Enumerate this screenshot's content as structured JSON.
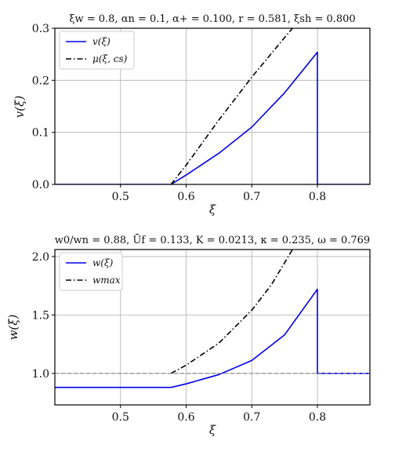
{
  "chart_data": [
    {
      "type": "line",
      "title": "ξw = 0.8, αn = 0.1, α+ = 0.100, r = 0.581, ξsh = 0.800",
      "xlabel": "ξ",
      "ylabel": "v(ξ)",
      "xlim": [
        0.4,
        0.88
      ],
      "ylim": [
        0.0,
        0.3
      ],
      "xticks": [
        "0.5",
        "0.6",
        "0.7",
        "0.8"
      ],
      "xtick_values": [
        0.5,
        0.6,
        0.7,
        0.8
      ],
      "yticks": [
        "0.0",
        "0.1",
        "0.2",
        "0.3"
      ],
      "ytick_values": [
        0.0,
        0.1,
        0.2,
        0.3
      ],
      "grid": true,
      "legend": "top-left",
      "series": [
        {
          "name": "v(ξ)",
          "color": "#0000ee",
          "style": "solid",
          "x": [
            0.4,
            0.577,
            0.6,
            0.65,
            0.7,
            0.75,
            0.8,
            0.8,
            0.88
          ],
          "y": [
            0.0,
            0.0,
            0.018,
            0.06,
            0.11,
            0.176,
            0.254,
            0.0,
            0.0
          ]
        },
        {
          "name": "μ(ξ, cs)",
          "color": "#000000",
          "style": "dashdot",
          "x": [
            0.577,
            0.6,
            0.65,
            0.7,
            0.75,
            0.762
          ],
          "y": [
            0.0,
            0.037,
            0.124,
            0.206,
            0.282,
            0.3
          ]
        }
      ]
    },
    {
      "type": "line",
      "title": "w0/wn = 0.88, Ūf = 0.133, K = 0.0213, κ = 0.235, ω = 0.769",
      "xlabel": "ξ",
      "ylabel": "w(ξ)",
      "xlim": [
        0.4,
        0.88
      ],
      "ylim": [
        0.73,
        2.06
      ],
      "xticks": [
        "0.5",
        "0.6",
        "0.7",
        "0.8"
      ],
      "xtick_values": [
        0.5,
        0.6,
        0.7,
        0.8
      ],
      "yticks": [
        "1.0",
        "1.5",
        "2.0"
      ],
      "ytick_values": [
        1.0,
        1.5,
        2.0
      ],
      "grid": true,
      "legend": "top-left",
      "series": [
        {
          "name": "w(ξ)",
          "color": "#0000ee",
          "style": "solid",
          "x": [
            0.4,
            0.577,
            0.6,
            0.65,
            0.7,
            0.75,
            0.8,
            0.8,
            0.88
          ],
          "y": [
            0.88,
            0.88,
            0.91,
            0.99,
            1.11,
            1.33,
            1.72,
            1.0,
            1.0
          ]
        },
        {
          "name": "wmax",
          "color": "#000000",
          "style": "dashdot",
          "x": [
            0.577,
            0.6,
            0.65,
            0.7,
            0.73,
            0.762
          ],
          "y": [
            1.0,
            1.07,
            1.26,
            1.54,
            1.76,
            2.06
          ]
        },
        {
          "name": "",
          "color": "#888888",
          "style": "dashed",
          "x": [
            0.4,
            0.88
          ],
          "y": [
            1.0,
            1.0
          ]
        }
      ]
    }
  ]
}
